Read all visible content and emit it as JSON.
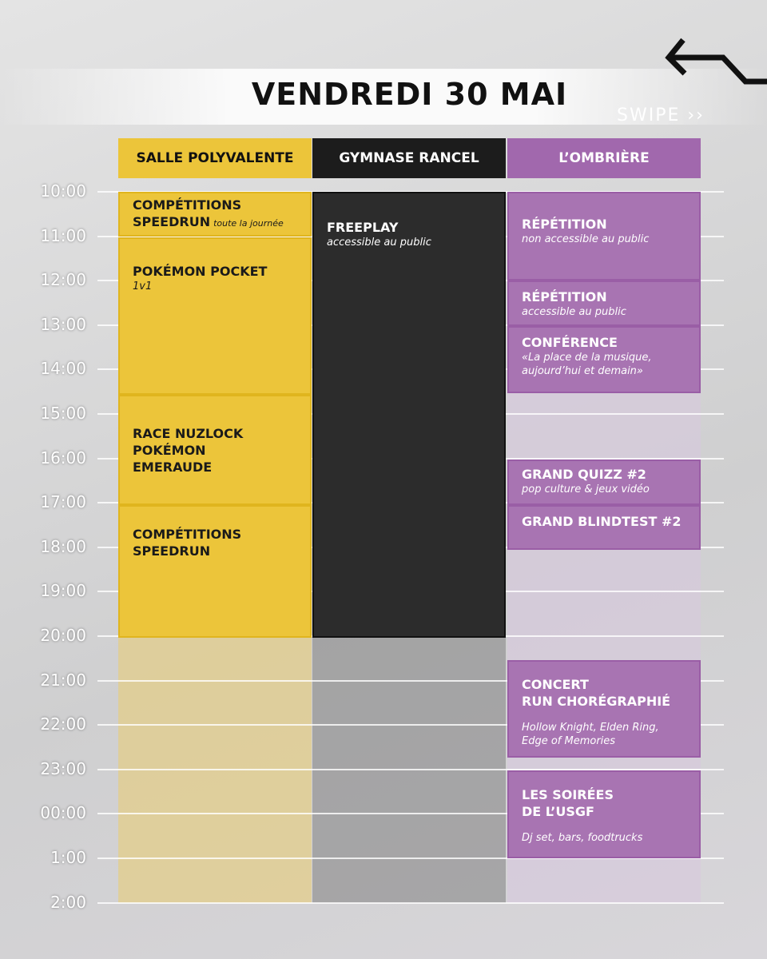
{
  "header": {
    "title": "VENDREDI 30 MAI",
    "swipe": "SWIPE ››"
  },
  "times": [
    "10:00",
    "11:00",
    "12:00",
    "13:00",
    "14:00",
    "15:00",
    "16:00",
    "17:00",
    "18:00",
    "19:00",
    "20:00",
    "21:00",
    "22:00",
    "23:00",
    "00:00",
    "1:00",
    "2:00"
  ],
  "venues": [
    {
      "name": "SALLE POLYVALENTE",
      "events": [
        {
          "title": "COMPÉTITIONS\nSPEEDRUN",
          "note": "toute la journée"
        },
        {
          "title": "POKÉMON POCKET",
          "note": "1v1"
        },
        {
          "title": "RACE NUZLOCK\nPOKÉMON\nEMERAUDE"
        },
        {
          "title": "COMPÉTITIONS\nSPEEDRUN"
        }
      ]
    },
    {
      "name": "GYMNASE RANCEL",
      "events": [
        {
          "title": "FREEPLAY",
          "note": "accessible au public"
        }
      ]
    },
    {
      "name": "L’OMBRIÈRE",
      "events": [
        {
          "title": "RÉPÉTITION",
          "note": "non accessible au public"
        },
        {
          "title": "RÉPÉTITION",
          "note": "accessible au public"
        },
        {
          "title": "CONFÉRENCE",
          "note": "«La place de la musique,\naujourd’hui et demain»"
        },
        {
          "title": "GRAND QUIZZ #2",
          "note": "pop culture & jeux vidéo"
        },
        {
          "title": "GRAND BLINDTEST #2"
        },
        {
          "title": "CONCERT\nRUN CHORÉGRAPHIÉ",
          "note": "Hollow Knight, Elden Ring,\nEdge of Memories"
        },
        {
          "title": "LES SOIRÉES\nDE L’USGF",
          "note": "Dj set, bars, foodtrucks"
        }
      ]
    }
  ]
}
